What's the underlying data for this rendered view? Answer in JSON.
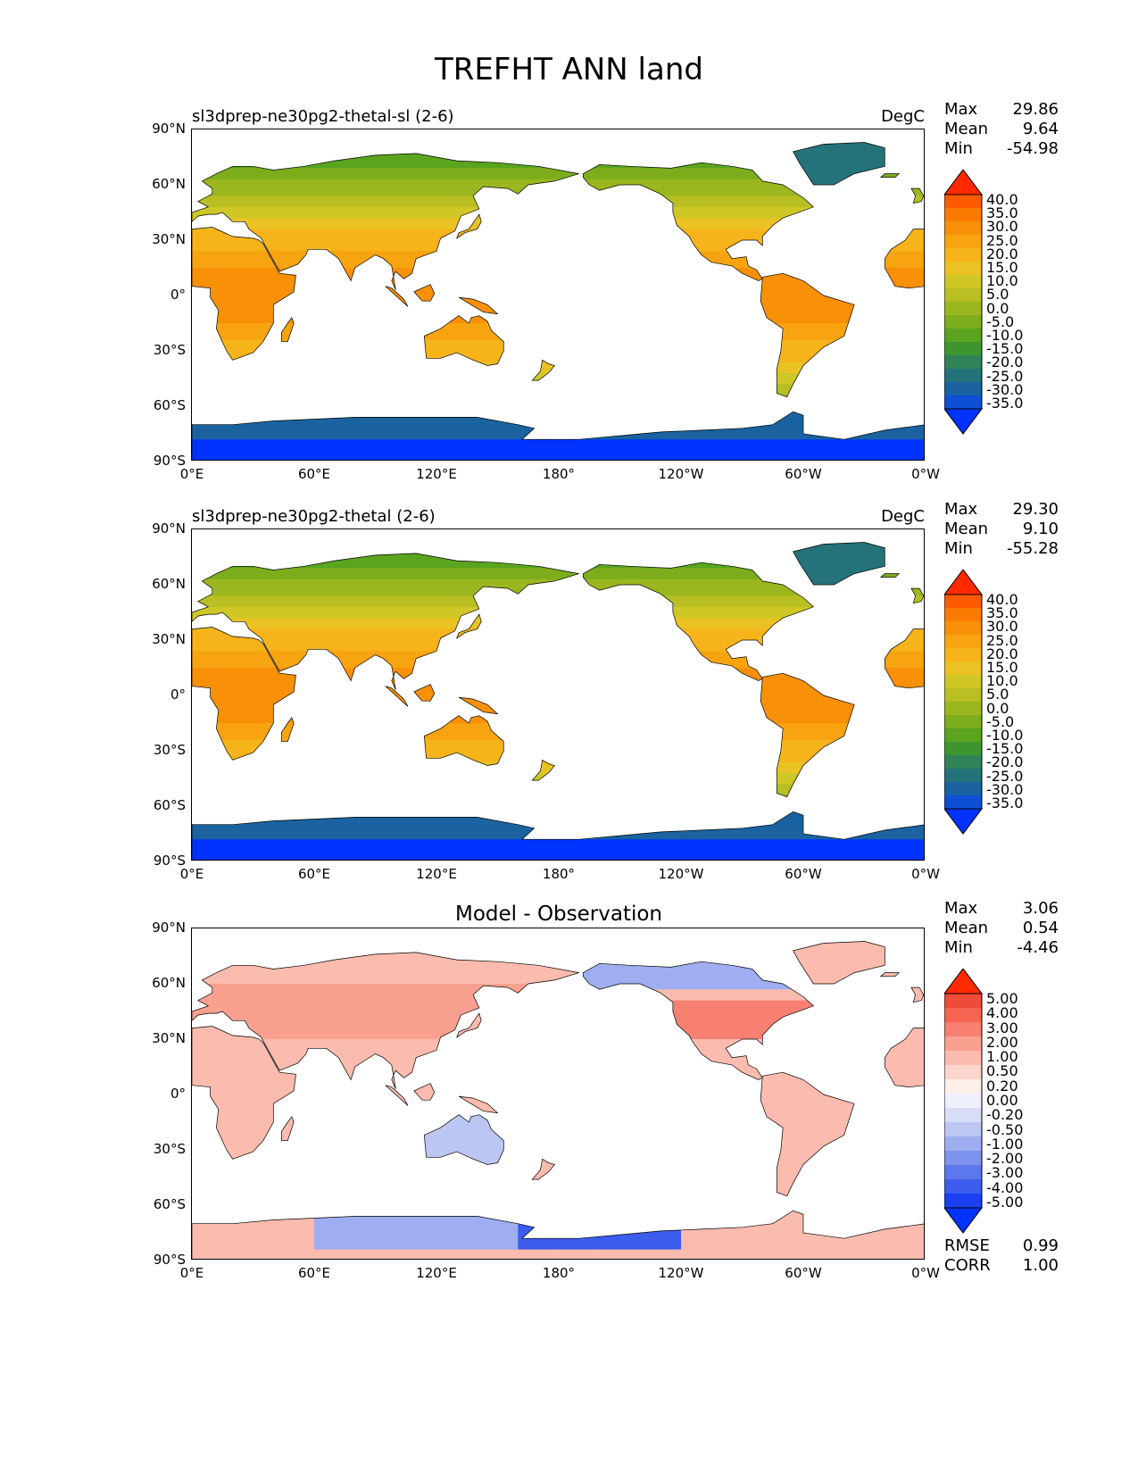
{
  "figure_title": "TREFHT ANN land",
  "lat_labels": [
    "90°N",
    "60°N",
    "30°N",
    "0°",
    "30°S",
    "60°S",
    "90°S"
  ],
  "lon_labels": [
    "0°E",
    "60°E",
    "120°E",
    "180°",
    "120°W",
    "60°W",
    "0°W"
  ],
  "panels": [
    {
      "title": "sl3dprep-ne30pg2-thetal-sl (2-6)",
      "title_center": "",
      "units": "DegC",
      "stats": [
        {
          "label": "Max",
          "value": "29.86"
        },
        {
          "label": "Mean",
          "value": "9.64"
        },
        {
          "label": "Min",
          "value": "-54.98"
        }
      ],
      "scale": "abs",
      "colorbar_labels": [
        "40.0",
        "35.0",
        "30.0",
        "25.0",
        "20.0",
        "15.0",
        "10.0",
        "5.0",
        "0.0",
        "-5.0",
        "-10.0",
        "-15.0",
        "-20.0",
        "-25.0",
        "-30.0",
        "-35.0"
      ]
    },
    {
      "title": "sl3dprep-ne30pg2-thetal (2-6)",
      "title_center": "",
      "units": "DegC",
      "stats": [
        {
          "label": "Max",
          "value": "29.30"
        },
        {
          "label": "Mean",
          "value": "9.10"
        },
        {
          "label": "Min",
          "value": "-55.28"
        }
      ],
      "scale": "abs",
      "colorbar_labels": [
        "40.0",
        "35.0",
        "30.0",
        "25.0",
        "20.0",
        "15.0",
        "10.0",
        "5.0",
        "0.0",
        "-5.0",
        "-10.0",
        "-15.0",
        "-20.0",
        "-25.0",
        "-30.0",
        "-35.0"
      ]
    },
    {
      "title": "",
      "title_center": "Model - Observation",
      "units": "",
      "stats": [
        {
          "label": "Max",
          "value": "3.06"
        },
        {
          "label": "Mean",
          "value": "0.54"
        },
        {
          "label": "Min",
          "value": "-4.46"
        }
      ],
      "scale": "diff",
      "colorbar_labels": [
        "5.00",
        "4.00",
        "3.00",
        "2.00",
        "1.00",
        "0.50",
        "0.20",
        "0.00",
        "-0.20",
        "-0.50",
        "-1.00",
        "-2.00",
        "-3.00",
        "-4.00",
        "-5.00"
      ],
      "extra_stats": [
        {
          "label": "RMSE",
          "value": "0.99"
        },
        {
          "label": "CORR",
          "value": "1.00"
        }
      ]
    }
  ],
  "colors": {
    "abs": [
      "#ff2a00",
      "#ff5a00",
      "#fb7a00",
      "#f89008",
      "#f7a410",
      "#f6b41a",
      "#eac223",
      "#cfc726",
      "#b8bf22",
      "#9bb71f",
      "#7dad1c",
      "#5aa41e",
      "#3e9530",
      "#2f8357",
      "#25737a",
      "#1a63a0",
      "#0d4fd5",
      "#0033ff"
    ],
    "diff": [
      "#ff2a00",
      "#f04a3a",
      "#f56450",
      "#f78070",
      "#f9a090",
      "#fbbbae",
      "#fcd5cc",
      "#fdeeea",
      "#eef0fb",
      "#d8ddf7",
      "#bcc6f3",
      "#9eaef0",
      "#7d93ee",
      "#5d78ec",
      "#3c5cee",
      "#1a40f2",
      "#0033ff"
    ],
    "land_outline": "#000000"
  }
}
